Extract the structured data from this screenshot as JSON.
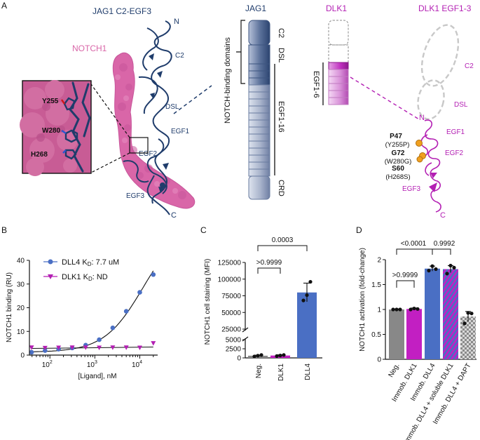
{
  "panel_letters": {
    "a": "A",
    "b": "B",
    "c": "C",
    "d": "D"
  },
  "colors": {
    "jag1_navy": "#1f3c6b",
    "notch_pink": "#d966a8",
    "dlk1_magenta": "#b31fb3",
    "dll4_blue": "#4a6fc4",
    "dlk1_bar": "#c21fc2",
    "neg_gray": "#888888",
    "mutation_orange": "#f0a020"
  },
  "panel_a": {
    "structure_title": "JAG1 C2-EGF3",
    "notch1_label": "NOTCH1",
    "n_term": "N",
    "c_term": "C",
    "domain_labels": [
      "C2",
      "DSL",
      "EGF1",
      "EGF2",
      "EGF3"
    ],
    "inset_residues": [
      "Y255",
      "W280",
      "H268"
    ],
    "jag1_schematic": {
      "title": "JAG1",
      "bracket_label": "NOTCH-binding domains",
      "domains": [
        "C2",
        "DSL",
        "EGF1-16",
        "CRD"
      ]
    },
    "dlk1_schematic": {
      "title": "DLK1",
      "egf_label": "EGF1-6"
    },
    "dlk1_model": {
      "title": "DLK1 EGF1-3",
      "n_term": "N",
      "c_term": "C",
      "domain_labels": [
        "C2",
        "DSL",
        "EGF1",
        "EGF2",
        "EGF3"
      ],
      "residues": [
        {
          "name": "P47",
          "equiv": "(Y255P)"
        },
        {
          "name": "G72",
          "equiv": "(W280G)"
        },
        {
          "name": "S60",
          "equiv": "(H268S)"
        }
      ]
    }
  },
  "chart_data": [
    {
      "panel": "B",
      "type": "scatter",
      "title": "",
      "xlabel": "[Ligand], nM",
      "ylabel": "NOTCH1 binding (RU)",
      "xscale": "log",
      "xlim": [
        35,
        25000
      ],
      "ylim": [
        0,
        40
      ],
      "yticks": [
        0,
        10,
        20,
        30,
        40
      ],
      "xticks": [
        {
          "value": 100,
          "label": "10",
          "exp": "2"
        },
        {
          "value": 1000,
          "label": "10",
          "exp": "3"
        },
        {
          "value": 10000,
          "label": "10",
          "exp": "4"
        }
      ],
      "legend_position": "top-left",
      "series": [
        {
          "name": "DLL4",
          "kd_label": "K",
          "kd_sub": "D",
          "kd_value": ": 7.7 uM",
          "marker": "circle",
          "color": "#4a6fc4",
          "x": [
            39,
            78,
            156,
            313,
            625,
            1250,
            2500,
            5000,
            10000,
            20000
          ],
          "y": [
            1.2,
            1.9,
            2.5,
            3.0,
            4.2,
            6.5,
            11.5,
            18.5,
            26.5,
            34.0
          ]
        },
        {
          "name": "DLK1",
          "kd_label": "K",
          "kd_sub": "D",
          "kd_value": ": ND",
          "marker": "triangle-down",
          "color": "#b31fb3",
          "x": [
            39,
            78,
            156,
            313,
            625,
            1250,
            2500,
            5000,
            10000,
            20000
          ],
          "y": [
            3.2,
            3.0,
            3.1,
            3.2,
            3.2,
            3.1,
            3.2,
            3.2,
            3.1,
            5.0
          ]
        }
      ]
    },
    {
      "panel": "C",
      "type": "bar",
      "title": "",
      "ylabel": "NOTCH1 cell staining (MFI)",
      "categories": [
        "Neg.",
        "DLK1",
        "DLL4"
      ],
      "values": [
        600,
        650,
        80000
      ],
      "errors": [
        150,
        200,
        14000
      ],
      "points": [
        [
          400,
          600,
          800
        ],
        [
          500,
          650,
          800
        ],
        [
          68000,
          76000,
          96000
        ]
      ],
      "bar_colors": [
        "#888888",
        "#c21fc2",
        "#4a6fc4"
      ],
      "yticks_lower": [
        "0",
        "2500",
        "5000"
      ],
      "yticks_upper": [
        "25000",
        "50000",
        "75000",
        "100000",
        "125000"
      ],
      "axis_break": [
        5000,
        25000
      ],
      "comparisons": [
        {
          "pair": [
            "Neg.",
            "DLK1"
          ],
          "p": ">0.9999"
        },
        {
          "pair": [
            "Neg.",
            "DLL4"
          ],
          "p": "0.0003"
        }
      ]
    },
    {
      "panel": "D",
      "type": "bar",
      "title": "",
      "ylabel": "NOTCH1 activation (fold-change)",
      "ylim": [
        0,
        2.0
      ],
      "yticks": [
        "0",
        "0.5",
        "1",
        "1.5",
        "2"
      ],
      "categories": [
        "Neg.",
        "Immob. DLK1",
        "Immob. DLL4",
        "Immob. DLL4 + soluble DLK1",
        "Immob. DLL4 + DAPT"
      ],
      "values": [
        1.0,
        1.01,
        1.82,
        1.81,
        0.86
      ],
      "errors": [
        0.01,
        0.02,
        0.05,
        0.07,
        0.1
      ],
      "points": [
        [
          1.0,
          1.0,
          1.0
        ],
        [
          1.0,
          1.02,
          1.01
        ],
        [
          1.78,
          1.87,
          1.81
        ],
        [
          1.72,
          1.88,
          1.84
        ],
        [
          0.72,
          0.93,
          0.92
        ]
      ],
      "bar_colors": [
        "#888888",
        "#c21fc2",
        "#4a6fc4",
        "striped-blue-magenta",
        "checkered-gray"
      ],
      "comparisons": [
        {
          "pair": [
            "Neg.",
            "Immob. DLK1"
          ],
          "p": ">0.9999"
        },
        {
          "pair": [
            "Neg.",
            "Immob. DLL4"
          ],
          "p": "<0.0001"
        },
        {
          "pair": [
            "Immob. DLL4",
            "Immob. DLL4 + soluble DLK1"
          ],
          "p": "0.9992"
        }
      ]
    }
  ]
}
